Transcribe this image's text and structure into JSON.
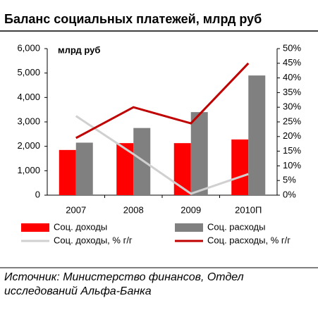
{
  "chart_data": {
    "type": "bar",
    "title": "Баланс социальных платежей, млрд руб",
    "annotation": "млрд руб",
    "source": "Источник: Министерство финансов, Отдел исследований Альфа-Банка",
    "categories": [
      "2007",
      "2008",
      "2009",
      "2010П"
    ],
    "series": [
      {
        "name": "Соц. доходы",
        "type": "bar",
        "color": "#ff0000",
        "values": [
          1850,
          2130,
          2130,
          2280
        ]
      },
      {
        "name": "Соц. расходы",
        "type": "bar",
        "color": "#808080",
        "values": [
          2150,
          2750,
          3400,
          4900
        ]
      },
      {
        "name": "Соц. доходы, % г/г",
        "type": "line",
        "axis": "y2",
        "color": "#d0d0d0",
        "values": [
          27,
          14,
          0.5,
          7.2
        ]
      },
      {
        "name": "Соц. расходы, % г/г",
        "type": "line",
        "axis": "y2",
        "color": "#c00000",
        "values": [
          19.5,
          30,
          24.5,
          45
        ]
      }
    ],
    "ylim": [
      0,
      6000
    ],
    "yticks": [
      0,
      {
        "value": 1000,
        "label": "1,000"
      },
      {
        "value": 2000,
        "label": "2,000"
      },
      {
        "value": 3000,
        "label": "3,000"
      },
      {
        "value": 4000,
        "label": "4,000"
      },
      {
        "value": 5000,
        "label": "5,000"
      },
      {
        "value": 6000,
        "label": "6,000"
      }
    ],
    "y2lim": [
      0,
      50
    ],
    "y2ticks": [
      {
        "value": 0,
        "label": "0%"
      },
      {
        "value": 5,
        "label": "5%"
      },
      {
        "value": 10,
        "label": "10%"
      },
      {
        "value": 15,
        "label": "15%"
      },
      {
        "value": 20,
        "label": "20%"
      },
      {
        "value": 25,
        "label": "25%"
      },
      {
        "value": 30,
        "label": "30%"
      },
      {
        "value": 35,
        "label": "35%"
      },
      {
        "value": 40,
        "label": "40%"
      },
      {
        "value": 45,
        "label": "45%"
      },
      {
        "value": 50,
        "label": "50%"
      }
    ]
  }
}
